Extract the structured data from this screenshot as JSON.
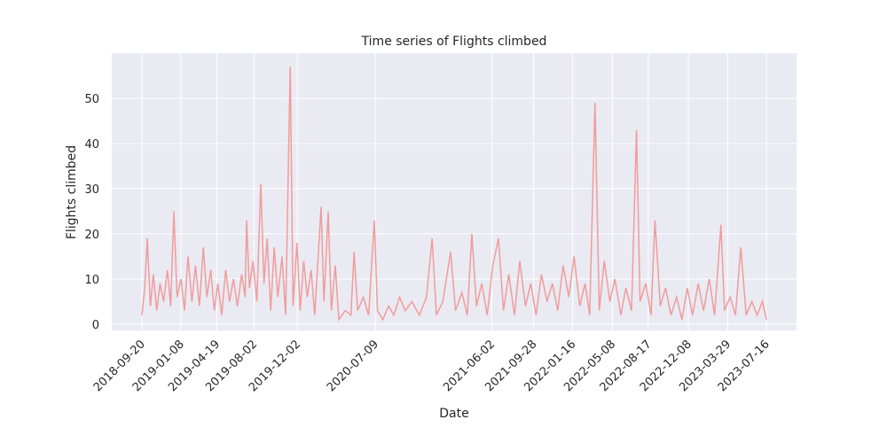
{
  "chart_data": {
    "type": "line",
    "title": "Time series of Flights climbed",
    "xlabel": "Date",
    "ylabel": "Flights climbed",
    "x": [
      "2018-09-20",
      "2018-09-28",
      "2018-10-05",
      "2018-10-14",
      "2018-10-22",
      "2018-11-01",
      "2018-11-10",
      "2018-11-20",
      "2018-12-01",
      "2018-12-10",
      "2018-12-19",
      "2018-12-28",
      "2019-01-08",
      "2019-01-18",
      "2019-01-28",
      "2019-02-08",
      "2019-02-18",
      "2019-03-01",
      "2019-03-12",
      "2019-03-22",
      "2019-04-02",
      "2019-04-12",
      "2019-04-22",
      "2019-05-03",
      "2019-05-14",
      "2019-05-25",
      "2019-06-05",
      "2019-06-16",
      "2019-06-28",
      "2019-07-08",
      "2019-07-12",
      "2019-07-20",
      "2019-07-30",
      "2019-08-10",
      "2019-08-21",
      "2019-08-30",
      "2019-09-08",
      "2019-09-18",
      "2019-09-28",
      "2019-10-08",
      "2019-10-20",
      "2019-10-30",
      "2019-11-12",
      "2019-11-20",
      "2019-12-01",
      "2019-12-10",
      "2019-12-20",
      "2019-12-30",
      "2020-01-10",
      "2020-01-20",
      "2020-02-07",
      "2020-02-15",
      "2020-02-27",
      "2020-03-07",
      "2020-03-18",
      "2020-03-28",
      "2020-04-15",
      "2020-05-01",
      "2020-05-10",
      "2020-05-20",
      "2020-06-05",
      "2020-06-20",
      "2020-07-06",
      "2020-07-15",
      "2020-07-30",
      "2020-08-15",
      "2020-08-30",
      "2020-09-15",
      "2020-10-01",
      "2020-10-20",
      "2020-11-10",
      "2020-11-30",
      "2020-12-16",
      "2020-12-28",
      "2021-01-15",
      "2021-02-06",
      "2021-02-20",
      "2021-03-10",
      "2021-03-25",
      "2021-04-07",
      "2021-04-20",
      "2021-05-05",
      "2021-05-20",
      "2021-06-05",
      "2021-06-21",
      "2021-07-05",
      "2021-07-20",
      "2021-08-05",
      "2021-08-20",
      "2021-09-05",
      "2021-09-20",
      "2021-10-05",
      "2021-10-20",
      "2021-11-05",
      "2021-11-20",
      "2021-12-05",
      "2021-12-20",
      "2022-01-05",
      "2022-01-20",
      "2022-02-05",
      "2022-02-20",
      "2022-03-05",
      "2022-03-20",
      "2022-04-01",
      "2022-04-15",
      "2022-05-01",
      "2022-05-15",
      "2022-06-01",
      "2022-06-15",
      "2022-07-01",
      "2022-07-15",
      "2022-07-25",
      "2022-08-10",
      "2022-08-25",
      "2022-09-05",
      "2022-09-20",
      "2022-10-05",
      "2022-10-20",
      "2022-11-05",
      "2022-11-20",
      "2022-12-05",
      "2022-12-20",
      "2023-01-05",
      "2023-01-20",
      "2023-02-05",
      "2023-02-20",
      "2023-03-10",
      "2023-03-20",
      "2023-04-05",
      "2023-04-20",
      "2023-05-05",
      "2023-05-20",
      "2023-06-05",
      "2023-06-20",
      "2023-07-05",
      "2023-07-16"
    ],
    "values": [
      2,
      8,
      19,
      4,
      11,
      3,
      9,
      5,
      12,
      4,
      25,
      6,
      10,
      3,
      15,
      5,
      13,
      4,
      17,
      6,
      12,
      3,
      9,
      2,
      12,
      5,
      10,
      4,
      11,
      6,
      23,
      8,
      14,
      5,
      31,
      9,
      19,
      3,
      17,
      6,
      15,
      2,
      57,
      4,
      18,
      3,
      14,
      6,
      12,
      2,
      26,
      5,
      25,
      3,
      13,
      1,
      3,
      2,
      16,
      3,
      6,
      2,
      23,
      3,
      1,
      4,
      2,
      6,
      3,
      5,
      2,
      6,
      19,
      2,
      5,
      16,
      3,
      7,
      2,
      20,
      4,
      9,
      2,
      13,
      19,
      3,
      11,
      2,
      14,
      4,
      9,
      2,
      11,
      5,
      9,
      3,
      13,
      6,
      15,
      4,
      9,
      2,
      49,
      3,
      14,
      5,
      10,
      2,
      8,
      3,
      43,
      5,
      9,
      2,
      23,
      4,
      8,
      2,
      6,
      1,
      8,
      2,
      9,
      3,
      10,
      2,
      22,
      3,
      6,
      2,
      17,
      2,
      5,
      2,
      5,
      1
    ],
    "color": "#f09c9c",
    "xlim": [
      "2018-06-27",
      "2023-10-09"
    ],
    "xticks": [
      "2018-09-20",
      "2019-01-08",
      "2019-04-19",
      "2019-08-02",
      "2019-12-02",
      "2020-07-09",
      "2021-06-02",
      "2021-09-28",
      "2022-01-16",
      "2022-05-08",
      "2022-08-17",
      "2022-12-08",
      "2023-03-29",
      "2023-07-16"
    ],
    "ylim": [
      -1.4,
      60
    ],
    "yticks": [
      0,
      10,
      20,
      30,
      40,
      50
    ],
    "grid": true
  }
}
